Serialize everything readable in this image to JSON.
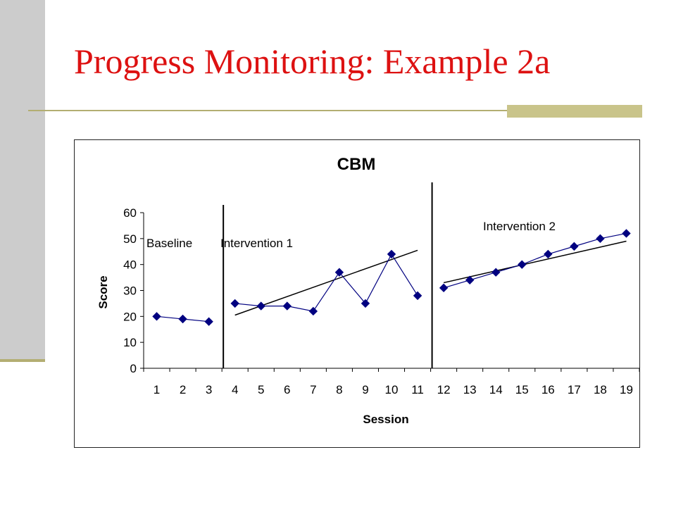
{
  "slide": {
    "title": "Progress Monitoring:  Example 2a"
  },
  "colors": {
    "title": "#dd1111",
    "sidebar": "#cccccc",
    "accent": "#b3ae72",
    "series": "#000080"
  },
  "chart_data": {
    "type": "line",
    "title": "CBM",
    "xlabel": "Session",
    "ylabel": "Score",
    "ylim": [
      0,
      60
    ],
    "yticks": [
      0,
      10,
      20,
      30,
      40,
      50,
      60
    ],
    "categories": [
      "1",
      "2",
      "3",
      "4",
      "5",
      "6",
      "7",
      "8",
      "9",
      "10",
      "11",
      "12",
      "13",
      "14",
      "15",
      "16",
      "17",
      "18",
      "19"
    ],
    "grid": false,
    "legend": "none",
    "phase_boundaries_after_session": [
      3,
      11
    ],
    "phases": [
      {
        "label": "Baseline",
        "sessions": [
          1,
          2,
          3
        ],
        "values": [
          20,
          19,
          18
        ]
      },
      {
        "label": "Intervention 1",
        "sessions": [
          4,
          5,
          6,
          7,
          8,
          9,
          10,
          11
        ],
        "values": [
          25,
          24,
          24,
          22,
          37,
          25,
          44,
          28
        ]
      },
      {
        "label": "Intervention 2",
        "sessions": [
          12,
          13,
          14,
          15,
          16,
          17,
          18,
          19
        ],
        "values": [
          31,
          34,
          37,
          40,
          44,
          47,
          50,
          52
        ]
      }
    ],
    "trend_lines": [
      {
        "phase": "Intervention 1",
        "from": {
          "x": 4,
          "y": 20.5
        },
        "to": {
          "x": 11,
          "y": 45.5
        }
      },
      {
        "phase": "Intervention 2",
        "from": {
          "x": 12,
          "y": 33
        },
        "to": {
          "x": 19,
          "y": 49
        }
      }
    ]
  }
}
